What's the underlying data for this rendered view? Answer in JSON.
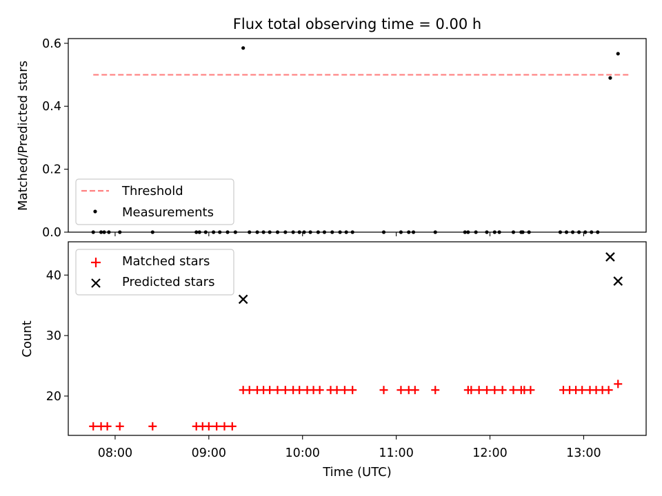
{
  "chart_data": [
    {
      "type": "scatter",
      "title": "Flux total observing time = 0.00 h",
      "xlabel": "",
      "ylabel": "Matched/Predicted stars",
      "xlim": [
        "07:30",
        "13:40"
      ],
      "ylim": [
        0,
        0.615
      ],
      "yticks": [
        0.0,
        0.2,
        0.4,
        0.6
      ],
      "ytick_labels": [
        "0.0",
        "0.2",
        "0.4",
        "0.6"
      ],
      "xticks": [
        "08:00",
        "09:00",
        "10:00",
        "11:00",
        "12:00",
        "13:00"
      ],
      "legend_position": "lower-left",
      "threshold": {
        "name": "Threshold",
        "value": 0.5,
        "x_range": [
          "07:46",
          "13:30"
        ],
        "color": "#ff7f7f",
        "style": "dashed"
      },
      "series": [
        {
          "name": "Measurements",
          "color": "#000000",
          "marker": "dot",
          "points": [
            [
              "07:46",
              0
            ],
            [
              "07:51",
              0
            ],
            [
              "07:53",
              0
            ],
            [
              "07:56",
              0
            ],
            [
              "08:03",
              0
            ],
            [
              "08:24",
              0
            ],
            [
              "08:52",
              0
            ],
            [
              "08:54",
              0
            ],
            [
              "08:58",
              0
            ],
            [
              "09:03",
              0
            ],
            [
              "09:07",
              0
            ],
            [
              "09:12",
              0
            ],
            [
              "09:17",
              0
            ],
            [
              "09:22",
              0.585
            ],
            [
              "09:26",
              0
            ],
            [
              "09:31",
              0
            ],
            [
              "09:35",
              0
            ],
            [
              "09:39",
              0
            ],
            [
              "09:44",
              0
            ],
            [
              "09:49",
              0
            ],
            [
              "09:54",
              0
            ],
            [
              "09:58",
              0
            ],
            [
              "10:01",
              0
            ],
            [
              "10:05",
              0
            ],
            [
              "10:10",
              0
            ],
            [
              "10:14",
              0
            ],
            [
              "10:19",
              0
            ],
            [
              "10:24",
              0
            ],
            [
              "10:28",
              0
            ],
            [
              "10:32",
              0
            ],
            [
              "10:52",
              0
            ],
            [
              "11:03",
              0
            ],
            [
              "11:08",
              0
            ],
            [
              "11:11",
              0
            ],
            [
              "11:25",
              0
            ],
            [
              "11:44",
              0
            ],
            [
              "11:46",
              0
            ],
            [
              "11:51",
              0
            ],
            [
              "11:58",
              0
            ],
            [
              "12:03",
              0
            ],
            [
              "12:06",
              0
            ],
            [
              "12:15",
              0
            ],
            [
              "12:20",
              0
            ],
            [
              "12:21",
              0
            ],
            [
              "12:25",
              0
            ],
            [
              "12:45",
              0
            ],
            [
              "12:49",
              0
            ],
            [
              "12:53",
              0
            ],
            [
              "12:57",
              0
            ],
            [
              "13:01",
              0
            ],
            [
              "13:05",
              0
            ],
            [
              "13:09",
              0
            ],
            [
              "13:17",
              0.49
            ],
            [
              "13:22",
              0.567
            ]
          ]
        }
      ]
    },
    {
      "type": "scatter",
      "title": "",
      "xlabel": "Time (UTC)",
      "ylabel": "Count",
      "xlim": [
        "07:30",
        "13:40"
      ],
      "ylim": [
        13.5,
        45.5
      ],
      "yticks": [
        20,
        30,
        40
      ],
      "ytick_labels": [
        "20",
        "30",
        "40"
      ],
      "xticks": [
        "08:00",
        "09:00",
        "10:00",
        "11:00",
        "12:00",
        "13:00"
      ],
      "legend_position": "upper-left",
      "series": [
        {
          "name": "Matched stars",
          "color": "#ff0000",
          "marker": "plus",
          "points": [
            [
              "07:46",
              15
            ],
            [
              "07:51",
              15
            ],
            [
              "07:55",
              15
            ],
            [
              "08:03",
              15
            ],
            [
              "08:24",
              15
            ],
            [
              "08:52",
              15
            ],
            [
              "08:56",
              15
            ],
            [
              "09:00",
              15
            ],
            [
              "09:05",
              15
            ],
            [
              "09:10",
              15
            ],
            [
              "09:15",
              15
            ],
            [
              "09:22",
              21
            ],
            [
              "09:26",
              21
            ],
            [
              "09:31",
              21
            ],
            [
              "09:35",
              21
            ],
            [
              "09:39",
              21
            ],
            [
              "09:44",
              21
            ],
            [
              "09:49",
              21
            ],
            [
              "09:54",
              21
            ],
            [
              "09:58",
              21
            ],
            [
              "10:03",
              21
            ],
            [
              "10:07",
              21
            ],
            [
              "10:11",
              21
            ],
            [
              "10:18",
              21
            ],
            [
              "10:22",
              21
            ],
            [
              "10:27",
              21
            ],
            [
              "10:32",
              21
            ],
            [
              "10:52",
              21
            ],
            [
              "11:03",
              21
            ],
            [
              "11:08",
              21
            ],
            [
              "11:12",
              21
            ],
            [
              "11:25",
              21
            ],
            [
              "11:46",
              21
            ],
            [
              "11:48",
              21
            ],
            [
              "11:53",
              21
            ],
            [
              "11:58",
              21
            ],
            [
              "12:03",
              21
            ],
            [
              "12:08",
              21
            ],
            [
              "12:15",
              21
            ],
            [
              "12:20",
              21
            ],
            [
              "12:22",
              21
            ],
            [
              "12:26",
              21
            ],
            [
              "12:47",
              21
            ],
            [
              "12:51",
              21
            ],
            [
              "12:55",
              21
            ],
            [
              "12:59",
              21
            ],
            [
              "13:04",
              21
            ],
            [
              "13:08",
              21
            ],
            [
              "13:12",
              21
            ],
            [
              "13:16",
              21
            ],
            [
              "13:22",
              22
            ]
          ]
        },
        {
          "name": "Predicted stars",
          "color": "#000000",
          "marker": "x",
          "points": [
            [
              "09:22",
              36
            ],
            [
              "13:17",
              43
            ],
            [
              "13:22",
              39
            ]
          ]
        }
      ]
    }
  ]
}
